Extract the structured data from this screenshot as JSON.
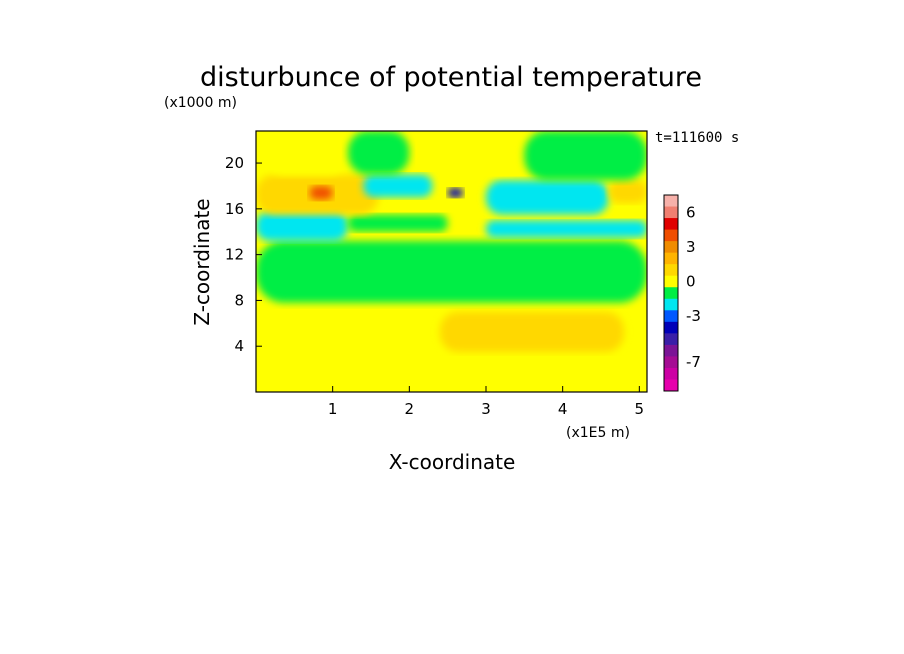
{
  "chart_data": {
    "type": "heatmap",
    "title": "disturbunce of potential temperature",
    "yunits": "(x1000 m)",
    "xunits": "(x1E5 m)",
    "xlabel": "X-coordinate",
    "ylabel": "Z-coordinate",
    "time_label": "t=111600 s",
    "xlim": [
      0,
      5.1
    ],
    "ylim": [
      0,
      22.8
    ],
    "xticks": [
      {
        "value": 1,
        "label": "1"
      },
      {
        "value": 2,
        "label": "2"
      },
      {
        "value": 3,
        "label": "3"
      },
      {
        "value": 4,
        "label": "4"
      },
      {
        "value": 5,
        "label": "5"
      }
    ],
    "yticks": [
      {
        "value": 4,
        "label": "4"
      },
      {
        "value": 8,
        "label": "8"
      },
      {
        "value": 12,
        "label": "12"
      },
      {
        "value": 16,
        "label": "16"
      },
      {
        "value": 20,
        "label": "20"
      }
    ],
    "colorbar": {
      "levels": [
        8,
        7,
        6,
        5,
        4,
        3,
        2,
        1,
        0,
        -1,
        -2,
        -3,
        -4,
        -5,
        -6,
        -7,
        -8,
        -9
      ],
      "colors": [
        "#f7b1aa",
        "#f07f71",
        "#e00000",
        "#f04e00",
        "#f08c00",
        "#ffb400",
        "#ffd800",
        "#ffff00",
        "#00ee44",
        "#00e6f0",
        "#0058ff",
        "#0000b8",
        "#3a1fa8",
        "#7b1496",
        "#a50c94",
        "#cc00a4",
        "#e600ac"
      ],
      "ticks": [
        {
          "value": 6,
          "label": "6"
        },
        {
          "value": 3,
          "label": "3"
        },
        {
          "value": 0,
          "label": "0"
        },
        {
          "value": -3,
          "label": "-3"
        },
        {
          "value": -7,
          "label": "-7"
        }
      ]
    },
    "field": {
      "background_value": 0.5,
      "regions": [
        {
          "x": [
            0,
            5.1
          ],
          "y": [
            0,
            1.2
          ],
          "value": 0.5
        },
        {
          "x": [
            0,
            5.1
          ],
          "y": [
            1.2,
            7.8
          ],
          "value": 0.5
        },
        {
          "x": [
            2.4,
            4.8
          ],
          "y": [
            3.5,
            7.0
          ],
          "value": 1.5
        },
        {
          "x": [
            0,
            5.1
          ],
          "y": [
            7.8,
            13.2
          ],
          "value": -0.5
        },
        {
          "x": [
            0,
            1.2
          ],
          "y": [
            13.2,
            15.8
          ],
          "value": -1.5
        },
        {
          "x": [
            1.2,
            2.5
          ],
          "y": [
            14.0,
            15.5
          ],
          "value": -0.5
        },
        {
          "x": [
            3.0,
            5.1
          ],
          "y": [
            13.5,
            15.0
          ],
          "value": -1.5
        },
        {
          "x": [
            0,
            1.6
          ],
          "y": [
            15.5,
            19.0
          ],
          "value": 1.5
        },
        {
          "x": [
            0.7,
            1.0
          ],
          "y": [
            16.8,
            18.0
          ],
          "value": 4.5
        },
        {
          "x": [
            1.4,
            2.3
          ],
          "y": [
            17.0,
            19.0
          ],
          "value": -1.5
        },
        {
          "x": [
            2.5,
            2.7
          ],
          "y": [
            17.0,
            17.8
          ],
          "value": -3.5
        },
        {
          "x": [
            3.0,
            4.6
          ],
          "y": [
            15.5,
            18.5
          ],
          "value": -1.5
        },
        {
          "x": [
            4.6,
            5.1
          ],
          "y": [
            16.5,
            18.5
          ],
          "value": 1.5
        },
        {
          "x": [
            0.1,
            1.2
          ],
          "y": [
            19.0,
            22.8
          ],
          "value": 0.5
        },
        {
          "x": [
            1.2,
            2.0
          ],
          "y": [
            19.0,
            22.8
          ],
          "value": -0.5
        },
        {
          "x": [
            2.3,
            3.5
          ],
          "y": [
            19.0,
            22.8
          ],
          "value": 0.5
        },
        {
          "x": [
            3.5,
            5.1
          ],
          "y": [
            18.5,
            22.8
          ],
          "value": -0.5
        }
      ]
    }
  }
}
